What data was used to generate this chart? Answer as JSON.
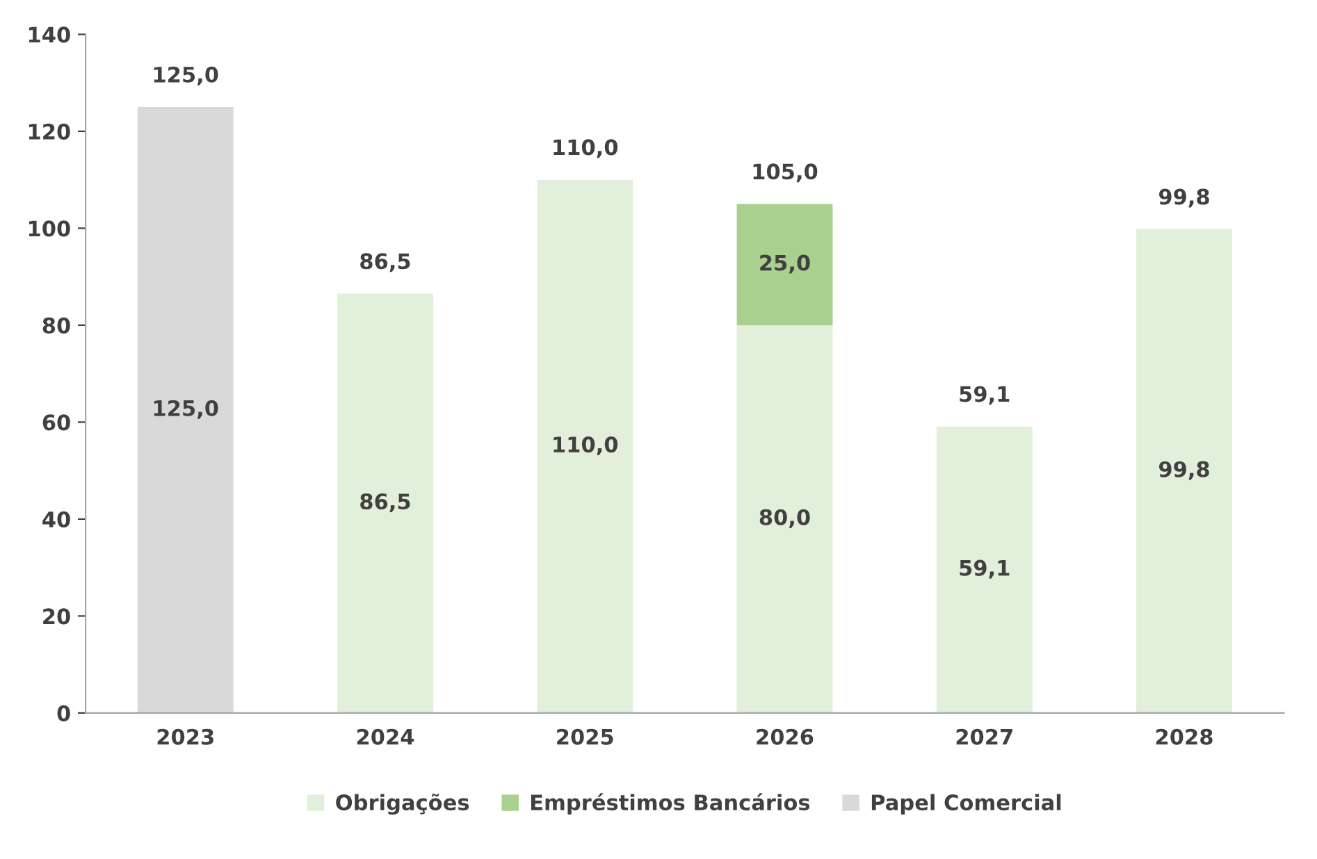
{
  "chart_data": {
    "type": "bar",
    "stacked": true,
    "categories": [
      "2023",
      "2024",
      "2025",
      "2026",
      "2027",
      "2028"
    ],
    "series": [
      {
        "name": "Obrigações",
        "color": "#e2efda",
        "values": [
          null,
          86.5,
          110.0,
          80.0,
          59.1,
          99.8
        ],
        "value_labels": [
          null,
          "86,5",
          "110,0",
          "80,0",
          "59,1",
          "99,8"
        ]
      },
      {
        "name": "Empréstimos Bancários",
        "color": "#a9d08e",
        "values": [
          null,
          null,
          null,
          25.0,
          null,
          null
        ],
        "value_labels": [
          null,
          null,
          null,
          "25,0",
          null,
          null
        ]
      },
      {
        "name": "Papel Comercial",
        "color": "#d9d9d9",
        "values": [
          125.0,
          null,
          null,
          null,
          null,
          null
        ],
        "value_labels": [
          "125,0",
          null,
          null,
          null,
          null,
          null
        ]
      }
    ],
    "totals": [
      "125,0",
      "86,5",
      "110,0",
      "105,0",
      "59,1",
      "99,8"
    ],
    "ylim": [
      0,
      140
    ],
    "yticks": [
      0,
      20,
      40,
      60,
      80,
      100,
      120,
      140
    ],
    "grid": false,
    "legend": "bottom"
  }
}
